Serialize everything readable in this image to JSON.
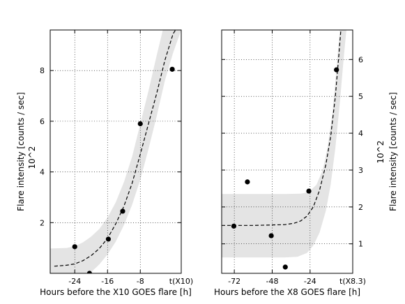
{
  "chart_data": [
    {
      "type": "scatter",
      "xlabel": "Hours before the X10 GOES flare [h]",
      "ylabel": "Flare intensity [counts / sec]",
      "yunit": "10^2",
      "xlim": [
        -30,
        2
      ],
      "ylim": [
        0,
        9.6
      ],
      "xticks": [
        -24,
        -16,
        -8
      ],
      "xtick_labels": [
        "-24",
        "-16",
        "-8"
      ],
      "x_end_label": "t(X10)",
      "yticks": [
        2,
        4,
        6,
        8
      ],
      "ytick_labels": [
        "2",
        "4",
        "6",
        "8"
      ],
      "y_axis_side": "left",
      "grid": true,
      "points": [
        {
          "x": -24.0,
          "y": 1.05
        },
        {
          "x": -20.4,
          "y": 0.0
        },
        {
          "x": -15.8,
          "y": 1.35
        },
        {
          "x": -12.3,
          "y": 2.45
        },
        {
          "x": -8.0,
          "y": 5.9
        },
        {
          "x": -0.2,
          "y": 8.05
        }
      ],
      "fit_curve": [
        {
          "x": -29,
          "y": 0.28
        },
        {
          "x": -26,
          "y": 0.32
        },
        {
          "x": -24,
          "y": 0.37
        },
        {
          "x": -22,
          "y": 0.5
        },
        {
          "x": -20,
          "y": 0.7
        },
        {
          "x": -18,
          "y": 0.98
        },
        {
          "x": -16,
          "y": 1.38
        },
        {
          "x": -14,
          "y": 1.95
        },
        {
          "x": -12,
          "y": 2.65
        },
        {
          "x": -10,
          "y": 3.55
        },
        {
          "x": -8,
          "y": 4.7
        },
        {
          "x": -6,
          "y": 5.9
        },
        {
          "x": -4,
          "y": 7.1
        },
        {
          "x": -2,
          "y": 8.4
        },
        {
          "x": 0,
          "y": 9.45
        },
        {
          "x": 0.6,
          "y": 9.6
        }
      ],
      "band_upper": [
        {
          "x": -30,
          "y": 0.98
        },
        {
          "x": -26,
          "y": 1.0
        },
        {
          "x": -24,
          "y": 1.07
        },
        {
          "x": -22,
          "y": 1.22
        },
        {
          "x": -20,
          "y": 1.45
        },
        {
          "x": -18,
          "y": 1.75
        },
        {
          "x": -16,
          "y": 2.2
        },
        {
          "x": -14,
          "y": 2.8
        },
        {
          "x": -12,
          "y": 3.6
        },
        {
          "x": -10,
          "y": 4.6
        },
        {
          "x": -8,
          "y": 5.9
        },
        {
          "x": -6,
          "y": 7.2
        },
        {
          "x": -4,
          "y": 8.6
        },
        {
          "x": -2.5,
          "y": 9.6
        }
      ],
      "band_lower": [
        {
          "x": 2,
          "y": 9.6
        },
        {
          "x": 0,
          "y": 8.7
        },
        {
          "x": -2,
          "y": 7.6
        },
        {
          "x": -4,
          "y": 6.2
        },
        {
          "x": -6,
          "y": 4.9
        },
        {
          "x": -8,
          "y": 3.7
        },
        {
          "x": -10,
          "y": 2.7
        },
        {
          "x": -12,
          "y": 1.9
        },
        {
          "x": -14,
          "y": 1.25
        },
        {
          "x": -16,
          "y": 0.75
        },
        {
          "x": -18,
          "y": 0.35
        },
        {
          "x": -20,
          "y": 0.05
        },
        {
          "x": -21,
          "y": 0
        },
        {
          "x": -30,
          "y": 0
        }
      ]
    },
    {
      "type": "scatter",
      "xlabel": "Hours before the X8 GOES flare [h]",
      "ylabel": "Flare intensity [counts / sec]",
      "yunit": "10^2",
      "xlim": [
        -80,
        3
      ],
      "ylim": [
        0.2,
        6.8
      ],
      "xticks": [
        -72,
        -48,
        -24
      ],
      "xtick_labels": [
        "-72",
        "-48",
        "-24"
      ],
      "x_end_label": "t(X8.3)",
      "yticks": [
        1,
        2,
        3,
        4,
        5,
        6
      ],
      "ytick_labels": [
        "1",
        "2",
        "3",
        "4",
        "5",
        "6"
      ],
      "y_axis_side": "right",
      "grid": true,
      "points": [
        {
          "x": -72.3,
          "y": 1.48
        },
        {
          "x": -63.7,
          "y": 2.68
        },
        {
          "x": -48.6,
          "y": 1.22
        },
        {
          "x": -39.7,
          "y": 0.37
        },
        {
          "x": -24.8,
          "y": 2.43
        },
        {
          "x": -7.3,
          "y": 5.72
        }
      ],
      "fit_curve": [
        {
          "x": -80,
          "y": 1.5
        },
        {
          "x": -60,
          "y": 1.5
        },
        {
          "x": -40,
          "y": 1.52
        },
        {
          "x": -34,
          "y": 1.56
        },
        {
          "x": -30,
          "y": 1.62
        },
        {
          "x": -26,
          "y": 1.75
        },
        {
          "x": -22,
          "y": 2.0
        },
        {
          "x": -18,
          "y": 2.45
        },
        {
          "x": -14,
          "y": 3.15
        },
        {
          "x": -11,
          "y": 3.9
        },
        {
          "x": -8,
          "y": 5.0
        },
        {
          "x": -6,
          "y": 6.0
        },
        {
          "x": -4.5,
          "y": 6.8
        }
      ],
      "band_upper": [
        {
          "x": -80,
          "y": 2.35
        },
        {
          "x": -40,
          "y": 2.35
        },
        {
          "x": -30,
          "y": 2.36
        },
        {
          "x": -25,
          "y": 2.4
        },
        {
          "x": -20,
          "y": 2.6
        },
        {
          "x": -16,
          "y": 3.0
        },
        {
          "x": -13,
          "y": 3.6
        },
        {
          "x": -10,
          "y": 4.5
        },
        {
          "x": -8,
          "y": 5.4
        },
        {
          "x": -6,
          "y": 6.4
        },
        {
          "x": -5.2,
          "y": 6.8
        }
      ],
      "band_lower": [
        {
          "x": -1,
          "y": 6.8
        },
        {
          "x": -3,
          "y": 5.9
        },
        {
          "x": -5,
          "y": 4.9
        },
        {
          "x": -8,
          "y": 3.6
        },
        {
          "x": -11,
          "y": 2.6
        },
        {
          "x": -14,
          "y": 1.9
        },
        {
          "x": -18,
          "y": 1.3
        },
        {
          "x": -22,
          "y": 0.95
        },
        {
          "x": -26,
          "y": 0.75
        },
        {
          "x": -32,
          "y": 0.65
        },
        {
          "x": -40,
          "y": 0.63
        },
        {
          "x": -80,
          "y": 0.63
        }
      ]
    }
  ]
}
